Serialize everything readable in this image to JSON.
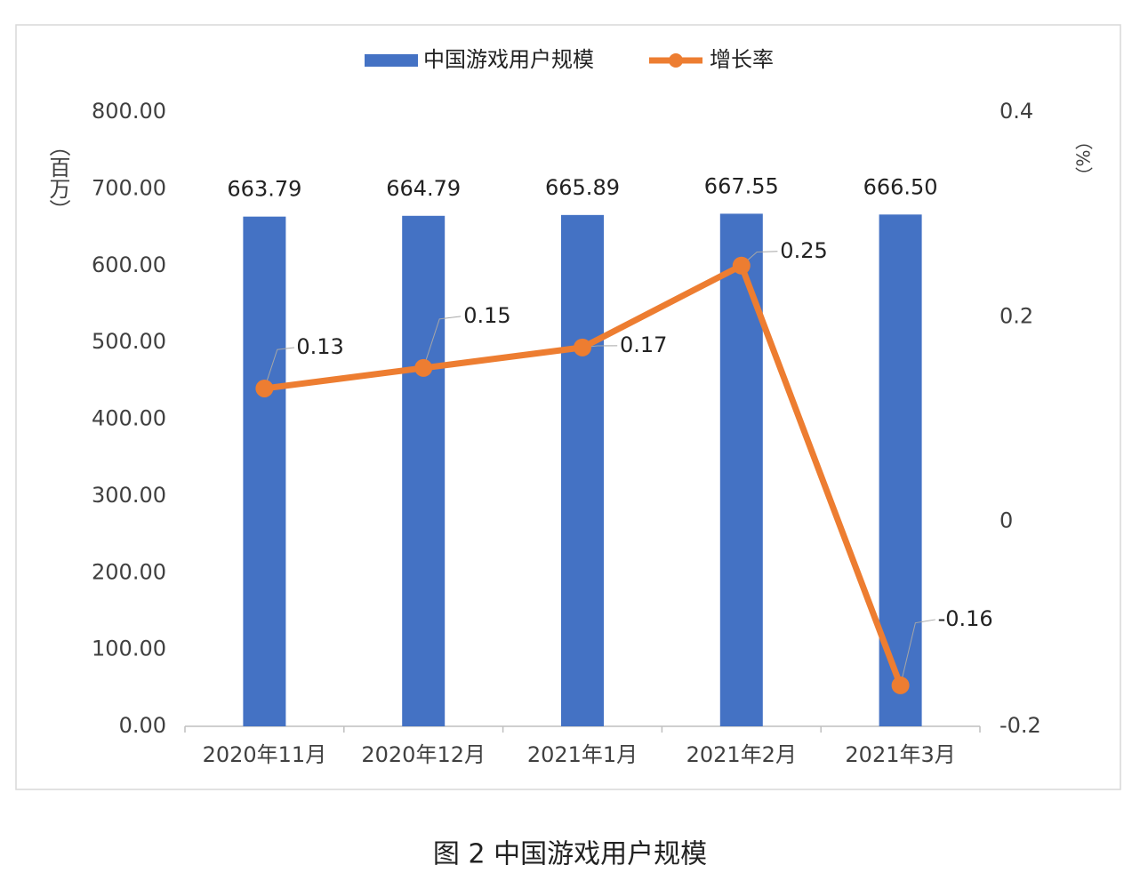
{
  "chart_data": {
    "type": "bar",
    "y_label": "（百万）",
    "y2_label": "（%）",
    "caption": "图 2 中国游戏用户规模",
    "categories": [
      "2020年11月",
      "2020年12月",
      "2021年1月",
      "2021年2月",
      "2021年3月"
    ],
    "series": [
      {
        "name": "中国游戏用户规模",
        "type": "bar",
        "color": "#4472c4",
        "values": [
          663.79,
          664.79,
          665.89,
          667.55,
          666.5
        ],
        "value_labels": [
          "663.79",
          "664.79",
          "665.89",
          "667.55",
          "666.50"
        ]
      },
      {
        "name": "增长率",
        "type": "line",
        "axis": "y2",
        "color": "#ed7d31",
        "values": [
          0.13,
          0.15,
          0.17,
          0.25,
          -0.16
        ]
      }
    ],
    "ylim": [
      0,
      800
    ],
    "yticks": [
      {
        "value": 0,
        "label": "0.00"
      },
      {
        "value": 100,
        "label": "100.00"
      },
      {
        "value": 200,
        "label": "200.00"
      },
      {
        "value": 300,
        "label": "300.00"
      },
      {
        "value": 400,
        "label": "400.00"
      },
      {
        "value": 500,
        "label": "500.00"
      },
      {
        "value": 600,
        "label": "600.00"
      },
      {
        "value": 700,
        "label": "700.00"
      },
      {
        "value": 800,
        "label": "800.00"
      }
    ],
    "y2lim": [
      -0.2,
      0.4
    ],
    "y2ticks": [
      -0.2,
      0,
      0.2,
      0.4
    ],
    "legend": "top"
  }
}
